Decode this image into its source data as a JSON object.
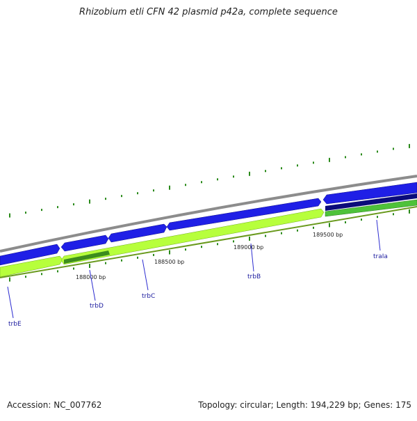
{
  "title": "Rhizobium etli CFN 42 plasmid p42a, complete sequence",
  "footer": {
    "accession": "Accession: NC_007762",
    "summary": "Topology: circular; Length: 194,229 bp; Genes: 175"
  },
  "ruler_labels": [
    "188000 bp",
    "188500 bp",
    "189000 bp",
    "189500 bp"
  ],
  "genes": [
    "trbE",
    "trbD",
    "trbC",
    "trbB",
    "traIa"
  ],
  "colors": {
    "backbone": "#8c8c8c",
    "forward_cds": "#1f1fe6",
    "forward_cds_dark": "#0b0b7a",
    "reverse_cds": "#b7ff3c",
    "reverse_cds_dark": "#3c8c1e",
    "ticks": "#2a8a1a",
    "gene_label": "#1a1a9e"
  }
}
